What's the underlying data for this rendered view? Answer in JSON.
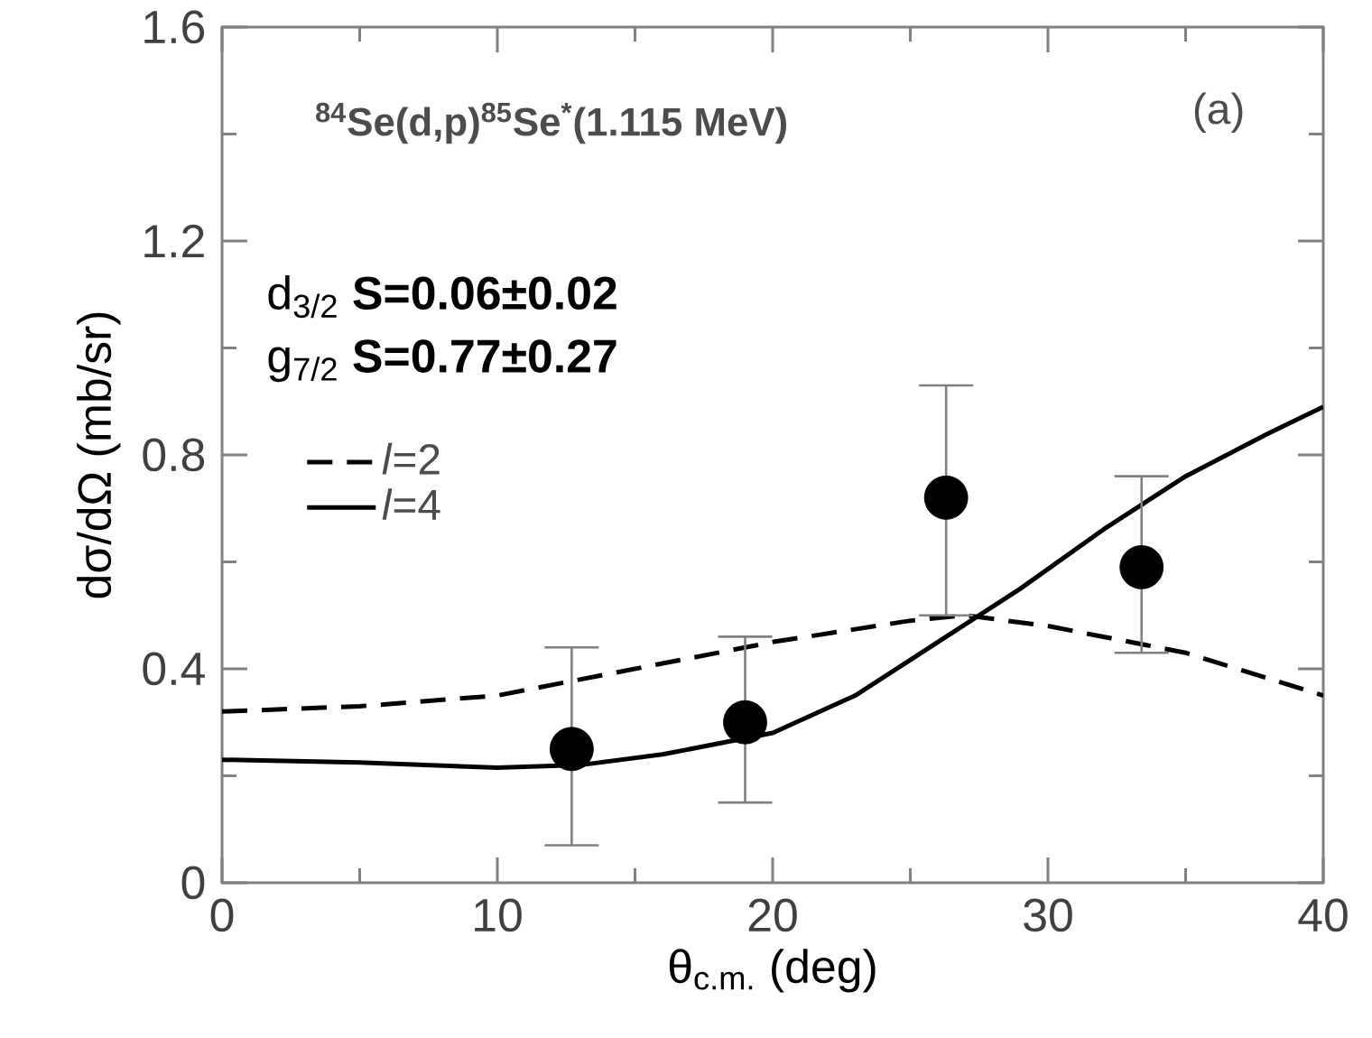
{
  "chart_data": {
    "type": "line",
    "title": "$^{84}$Se(d,p)$^{85}$Se$^{*}$(1.115 MeV)",
    "xlabel": "θ$_{c.m.}$ (deg)",
    "ylabel": "dσ/dΩ (mb/sr)",
    "annotations": [
      "(a)",
      "d$_{3/2}$  **S=0.06±0.02**",
      "g$_{7/2}$  **S=0.77±0.27**"
    ],
    "xlim": [
      0,
      40
    ],
    "ylim": [
      0,
      1.6
    ],
    "xticks": [
      0,
      10,
      20,
      30,
      40
    ],
    "yticks": [
      0,
      0.4,
      0.8,
      1.2,
      1.6
    ],
    "grid": false,
    "legend": "left",
    "series": [
      {
        "name": "*l*=2",
        "color": "#000000",
        "line_style": "dashed",
        "marker": "none",
        "x": [
          0,
          5,
          10,
          15,
          20,
          25,
          27,
          30,
          35,
          40
        ],
        "values": [
          0.32,
          0.33,
          0.35,
          0.4,
          0.45,
          0.49,
          0.5,
          0.48,
          0.43,
          0.35
        ]
      },
      {
        "name": "*l*=4",
        "color": "#000000",
        "line_style": "solid",
        "marker": "none",
        "x": [
          0,
          5,
          10,
          13,
          16,
          20,
          23,
          26,
          29,
          32,
          35,
          38,
          40
        ],
        "values": [
          0.23,
          0.225,
          0.215,
          0.22,
          0.24,
          0.28,
          0.35,
          0.45,
          0.55,
          0.66,
          0.76,
          0.84,
          0.89
        ]
      },
      {
        "type": "scatter",
        "color": "#000000",
        "marker": "circle",
        "x": [
          12.7,
          19,
          26.3,
          33.4
        ],
        "values": [
          0.25,
          0.3,
          0.72,
          0.59
        ],
        "errors": [
          [
            0.07,
            0.44
          ],
          [
            0.15,
            0.46
          ],
          [
            0.5,
            0.93
          ],
          [
            0.43,
            0.76
          ]
        ]
      }
    ]
  }
}
